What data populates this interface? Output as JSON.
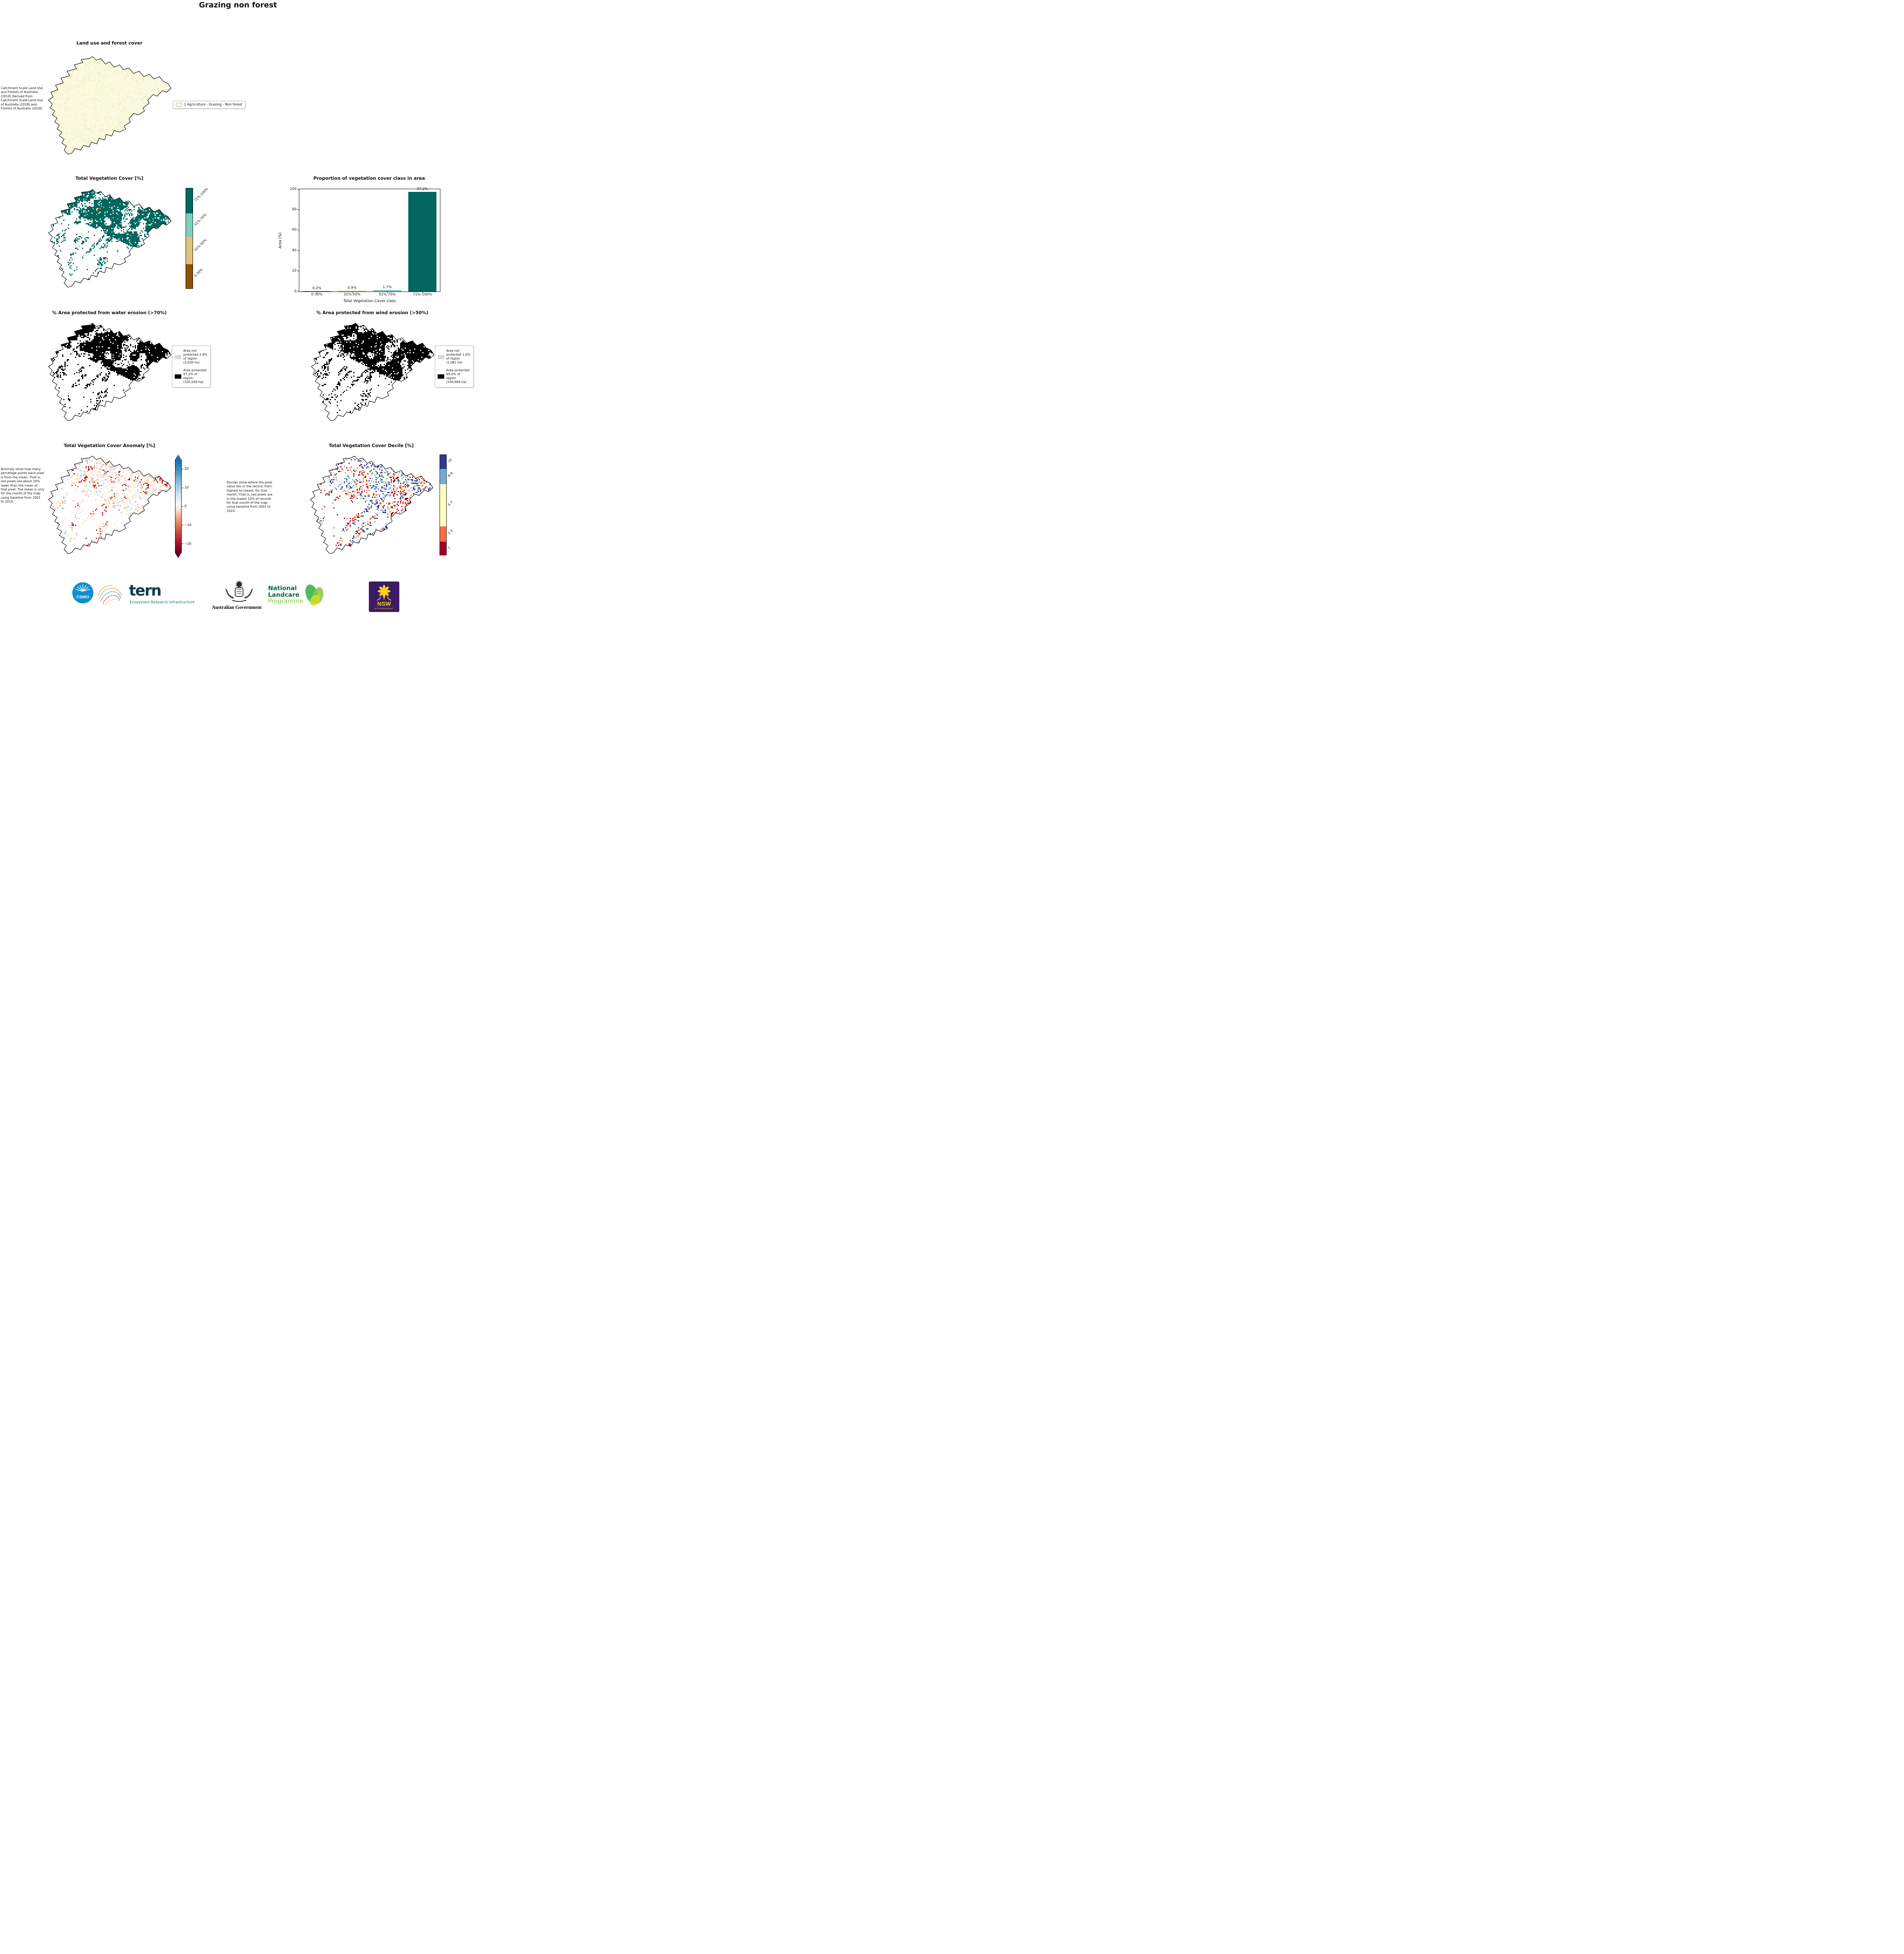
{
  "title": "Grazing non forest",
  "land_use": {
    "title": "Land use and forest cover",
    "note": "Catchment Scale Land Use and Forests of Australia (2018) Derived from Catchment Scale Land Use of Australia (2018) and Forests of Australia (2018)",
    "legend": {
      "swatch_color": "#fbfadf",
      "label": "1 Agriculture - Grazing - Non forest"
    }
  },
  "veg_cover_map": {
    "title": "Total Vegetation Cover [%]",
    "colorbar": [
      {
        "label": "71%-100%",
        "color": "#01665e"
      },
      {
        "label": "51%-70%",
        "color": "#80cdc1"
      },
      {
        "label": "31%-50%",
        "color": "#dfc27d"
      },
      {
        "label": "0-30%",
        "color": "#8c510a"
      }
    ]
  },
  "chart_data": {
    "type": "bar",
    "title": "Proportion of vegetation cover class in area",
    "xlabel": "Total Vegetation Cover class",
    "ylabel": "Area (%)",
    "categories": [
      "0-30%",
      "31%-50%",
      "51%-70%",
      "71%-100%"
    ],
    "values": [
      0.2,
      0.9,
      1.7,
      97.2
    ],
    "bar_labels": [
      "0.2%",
      "0.9%",
      "1.7%",
      "97.2%"
    ],
    "bar_colors": [
      "#8c510a",
      "#dfc27d",
      "#80cdc1",
      "#01665e"
    ],
    "ylim": [
      0,
      100
    ],
    "yticks": [
      0,
      20,
      40,
      60,
      80,
      100
    ],
    "grid": false,
    "legend_position": "none"
  },
  "water_erosion": {
    "title": "% Area protected from water erosion (>70%)",
    "legend": [
      {
        "label": "Area not protected 2.8% of region (3,026 ha)",
        "color": "#d9d9d9"
      },
      {
        "label": "Area protected 97.2% of region (105,049 ha)",
        "color": "#000000"
      }
    ]
  },
  "wind_erosion": {
    "title": "% Area protected from wind erosion (>50%)",
    "legend": [
      {
        "label": "Area not protected 1.0% of region (1,081 ha)",
        "color": "#d9d9d9"
      },
      {
        "label": "Area protected 99.0% of region (106,994 ha)",
        "color": "#000000"
      }
    ]
  },
  "anomaly": {
    "title": "Total Vegetation Cover Anomaly [%]",
    "note": "Anomaly show how many percetage points each pixel is from the mean. That is, red pixels are about 20% lower than the mean of that pixel. The mean is only for the month of the map using baseline from 2001 to 2019.",
    "colorbar_ticks": [
      "20",
      "10",
      "0",
      "−10",
      "−20"
    ]
  },
  "decile": {
    "title": "Total Vegetation Cover Decile [%]",
    "note": "Deciles show where the pixel value lies in the record, from highest to lowest, for that month. That is, red pixels are in the lowest 10% of records for that month of the map using baseline from 2001 to 2019.",
    "colorbar": [
      {
        "label": "10",
        "color": "#313695"
      },
      {
        "label": "8-9",
        "color": "#74add1"
      },
      {
        "label": "4-7",
        "color": "#ffffbf"
      },
      {
        "label": "2-3",
        "color": "#f46d43"
      },
      {
        "label": "1",
        "color": "#a50026"
      }
    ]
  },
  "footer": {
    "csiro_label": "CSIRO",
    "tern_label": "tern",
    "tern_subtitle": "Ecosystem Research Infrastructure",
    "aus_gov_label": "Australian Government",
    "nlp_line1": "National",
    "nlp_line2": "Landcare",
    "nlp_line3": "Programme",
    "nsw_label": "NSW",
    "nsw_sub": "GOVERNMENT"
  }
}
